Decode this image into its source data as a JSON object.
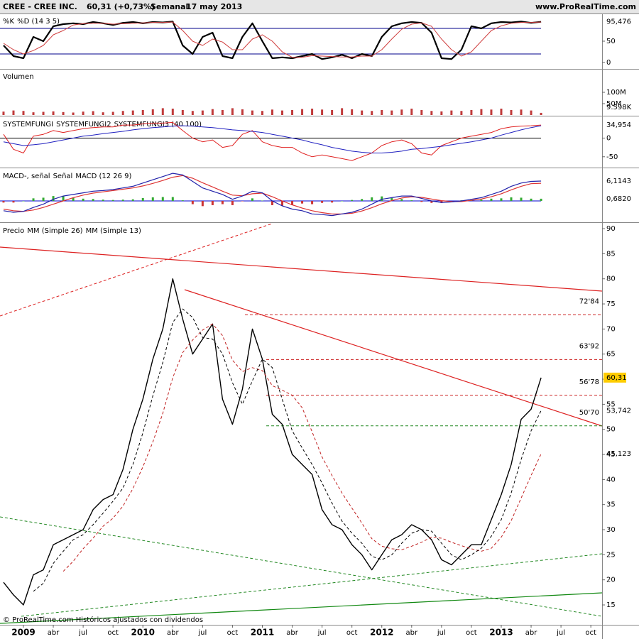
{
  "header": {
    "symbol": "CREE - CREE INC.",
    "quote": "60,31 (+0,73%)",
    "period": "Semanal",
    "date": "17 may 2013",
    "site": "www.ProRealTime.com"
  },
  "footer": "© ProRealTime.com  Históricos ajustados con dividendos",
  "chart_data": [
    {
      "type": "line",
      "xlim": [
        -2.354,
        58.13
      ],
      "ylim": [
        -13.3,
        113.3
      ],
      "yticks": [
        50,
        0
      ],
      "bands": [
        20,
        80
      ],
      "band_color": "#00008b",
      "x": [
        -2,
        -1,
        0,
        1,
        2,
        3,
        4,
        5,
        6,
        7,
        8,
        9,
        10,
        11,
        12,
        13,
        14,
        15,
        16,
        17,
        18,
        19,
        20,
        21,
        22,
        23,
        24,
        25,
        26,
        27,
        28,
        29,
        30,
        31,
        32,
        33,
        34,
        35,
        36,
        37,
        38,
        39,
        40,
        41,
        42,
        43,
        44,
        45,
        46,
        47,
        48,
        49,
        50,
        51,
        52
      ],
      "series": [
        {
          "name": "%K",
          "color": "#000000",
          "width": 2.2,
          "last_label": "95,476",
          "values": [
            40,
            15,
            10,
            60,
            50,
            85,
            90,
            92,
            90,
            95,
            92,
            88,
            93,
            95,
            92,
            95,
            94,
            96,
            40,
            20,
            60,
            70,
            15,
            10,
            60,
            92,
            50,
            10,
            12,
            10,
            15,
            20,
            8,
            12,
            18,
            10,
            20,
            15,
            60,
            85,
            92,
            95,
            93,
            70,
            10,
            8,
            30,
            85,
            80,
            92,
            95,
            94,
            96,
            93,
            95.476
          ]
        },
        {
          "name": "%D (14 3 5)",
          "color": "#d04040",
          "width": 1,
          "values": [
            45,
            30,
            20,
            28,
            40,
            65,
            75,
            88,
            91,
            92,
            92,
            90,
            91,
            92,
            93,
            94,
            94,
            95,
            75,
            50,
            40,
            55,
            48,
            30,
            30,
            55,
            65,
            50,
            25,
            12,
            12,
            16,
            15,
            14,
            13,
            13,
            15,
            15,
            30,
            55,
            78,
            90,
            93,
            85,
            55,
            30,
            15,
            25,
            50,
            75,
            86,
            92,
            94,
            94,
            95
          ]
        }
      ]
    },
    {
      "type": "bar",
      "title": "Volumen",
      "title_color": "#c04040",
      "color": "#c03a3a",
      "current": "9.598K",
      "xlim": [
        -2.354,
        58.13
      ],
      "ylim": [
        0,
        200
      ],
      "yticks": [
        {
          "value": 100,
          "label": "100M"
        },
        {
          "value": 50,
          "label": "50M"
        }
      ],
      "x": [
        -2,
        -1,
        0,
        1,
        2,
        3,
        4,
        5,
        6,
        7,
        8,
        9,
        10,
        11,
        12,
        13,
        14,
        15,
        16,
        17,
        18,
        19,
        20,
        21,
        22,
        23,
        24,
        25,
        26,
        27,
        28,
        29,
        30,
        31,
        32,
        33,
        34,
        35,
        36,
        37,
        38,
        39,
        40,
        41,
        42,
        43,
        44,
        45,
        46,
        47,
        48,
        49,
        50,
        51,
        52
      ],
      "values": [
        15,
        20,
        18,
        12,
        14,
        16,
        13,
        11,
        15,
        17,
        12,
        14,
        18,
        20,
        22,
        25,
        30,
        28,
        22,
        18,
        20,
        26,
        22,
        30,
        25,
        20,
        18,
        24,
        20,
        22,
        26,
        28,
        24,
        22,
        30,
        25,
        20,
        18,
        22,
        20,
        24,
        28,
        22,
        18,
        16,
        20,
        18,
        22,
        26,
        24,
        28,
        22,
        24,
        20,
        9.6
      ]
    },
    {
      "type": "line",
      "title": "SYSTEMFUNGI",
      "title_color": "#000000",
      "xlim": [
        -2.354,
        58.13
      ],
      "ylim": [
        -77,
        56
      ],
      "yticks": [
        0,
        -50
      ],
      "bands": [
        0
      ],
      "band_color": "#000000",
      "x": [
        -2,
        -1,
        0,
        1,
        2,
        3,
        4,
        5,
        6,
        7,
        8,
        9,
        10,
        11,
        12,
        13,
        14,
        15,
        16,
        17,
        18,
        19,
        20,
        21,
        22,
        23,
        24,
        25,
        26,
        27,
        28,
        29,
        30,
        31,
        32,
        33,
        34,
        35,
        36,
        37,
        38,
        39,
        40,
        41,
        42,
        43,
        44,
        45,
        46,
        47,
        48,
        49,
        50,
        51,
        52
      ],
      "series": [
        {
          "name": "SYSTEMFUNGI2",
          "color": "#e02020",
          "width": 1,
          "last_label": "34,954",
          "values": [
            10,
            -30,
            -40,
            5,
            10,
            20,
            15,
            20,
            25,
            28,
            30,
            30,
            35,
            35,
            38,
            40,
            40,
            42,
            20,
            0,
            -10,
            -5,
            -25,
            -20,
            10,
            20,
            -10,
            -20,
            -25,
            -25,
            -40,
            -50,
            -45,
            -50,
            -55,
            -60,
            -50,
            -40,
            -20,
            -10,
            -5,
            -15,
            -40,
            -45,
            -20,
            -10,
            0,
            5,
            10,
            15,
            25,
            30,
            32,
            33,
            34.954
          ]
        },
        {
          "name": "SYSTEMFUNGI3 (40 100)",
          "color": "#2020c0",
          "width": 1,
          "values": [
            -10,
            -15,
            -20,
            -18,
            -15,
            -10,
            -5,
            0,
            5,
            8,
            12,
            15,
            18,
            22,
            25,
            28,
            30,
            32,
            33,
            32,
            30,
            28,
            25,
            22,
            20,
            18,
            15,
            10,
            5,
            0,
            -5,
            -12,
            -18,
            -25,
            -30,
            -35,
            -38,
            -40,
            -40,
            -38,
            -35,
            -30,
            -28,
            -25,
            -22,
            -18,
            -14,
            -10,
            -5,
            0,
            8,
            15,
            22,
            28,
            33
          ]
        }
      ]
    },
    {
      "type": "combo",
      "xlim": [
        -2.354,
        58.13
      ],
      "ylim": [
        -6.33,
        9.83
      ],
      "bands": [
        0
      ],
      "band_color": "#0000cc",
      "x": [
        -2,
        -1,
        0,
        1,
        2,
        3,
        4,
        5,
        6,
        7,
        8,
        9,
        10,
        11,
        12,
        13,
        14,
        15,
        16,
        17,
        18,
        19,
        20,
        21,
        22,
        23,
        24,
        25,
        26,
        27,
        28,
        29,
        30,
        31,
        32,
        33,
        34,
        35,
        36,
        37,
        38,
        39,
        40,
        41,
        42,
        43,
        44,
        45,
        46,
        47,
        48,
        49,
        50,
        51,
        52
      ],
      "series": [
        {
          "name": "MACD-, señal",
          "kind": "bar",
          "color": "#33aa33",
          "neg_color": "#cc3333",
          "last_label": "0,6820",
          "values": [
            -0.5,
            -0.5,
            0,
            0.8,
            1,
            1.5,
            1.5,
            1,
            0.7,
            0.6,
            0.4,
            0.3,
            0.4,
            0.5,
            0.9,
            1.1,
            1.2,
            1.2,
            0.2,
            -1,
            -1.6,
            -1.3,
            -1,
            -1.3,
            -0.1,
            0.8,
            0.1,
            -1.3,
            -1.5,
            -1.3,
            -0.8,
            -1,
            -0.6,
            -0.5,
            0,
            0.3,
            0.6,
            1.1,
            1.4,
            0.9,
            0.6,
            0.2,
            -0.3,
            -0.6,
            -0.6,
            -0.1,
            0.2,
            0.3,
            0.4,
            0.7,
            0.8,
            1.1,
            1,
            0.7,
            0.682
          ]
        },
        {
          "name": "Señal",
          "kind": "line",
          "color": "#dd3333",
          "width": 1.2,
          "values": [
            -2.5,
            -3,
            -3.2,
            -2.8,
            -2,
            -1,
            0,
            1,
            1.8,
            2.4,
            2.8,
            3.2,
            3.6,
            4,
            4.6,
            5.4,
            6.3,
            7.3,
            7.8,
            7,
            5.6,
            4.3,
            3,
            1.8,
            1.6,
            2.2,
            2.4,
            1.3,
            0,
            -1.2,
            -2.2,
            -3,
            -3.6,
            -4,
            -4,
            -3.8,
            -3.1,
            -2.1,
            -0.9,
            0.1,
            0.9,
            1.3,
            1.1,
            0.6,
            0.1,
            -0.2,
            -0.2,
            0.2,
            0.6,
            1.3,
            2.2,
            3.4,
            4.5,
            5.3,
            5.4323
          ]
        },
        {
          "name": "MACD (12 26 9)",
          "kind": "line",
          "color": "#2222aa",
          "width": 1.2,
          "last_label": "6,1143",
          "values": [
            -3,
            -3.5,
            -3.2,
            -2,
            -1,
            0.5,
            1.5,
            2,
            2.5,
            3,
            3.2,
            3.5,
            4,
            4.5,
            5.5,
            6.5,
            7.5,
            8.5,
            8,
            6,
            4,
            3,
            2,
            0.5,
            1.5,
            3,
            2.5,
            0,
            -1.5,
            -2.5,
            -3,
            -4,
            -4.2,
            -4.5,
            -4,
            -3.5,
            -2.5,
            -1,
            0.5,
            1,
            1.5,
            1.5,
            0.8,
            0,
            -0.5,
            -0.3,
            0,
            0.5,
            1,
            2,
            3,
            4.5,
            5.5,
            6,
            6.1143
          ]
        }
      ]
    },
    {
      "type": "line",
      "xlim": [
        -2.354,
        58.13
      ],
      "ylim": [
        11.04,
        91
      ],
      "yticks": [
        90,
        85,
        80,
        75,
        70,
        65,
        60,
        55,
        50,
        45,
        40,
        35,
        30,
        25,
        20,
        15
      ],
      "xticks": [
        {
          "value": 0,
          "label": "2009"
        },
        {
          "value": 3,
          "label": "abr"
        },
        {
          "value": 6,
          "label": "jul"
        },
        {
          "value": 9,
          "label": "oct"
        },
        {
          "value": 12,
          "label": "2010"
        },
        {
          "value": 15,
          "label": "abr"
        },
        {
          "value": 18,
          "label": "jul"
        },
        {
          "value": 21,
          "label": "oct"
        },
        {
          "value": 24,
          "label": "2011"
        },
        {
          "value": 27,
          "label": "abr"
        },
        {
          "value": 30,
          "label": "jul"
        },
        {
          "value": 33,
          "label": "oct"
        },
        {
          "value": 36,
          "label": "2012"
        },
        {
          "value": 39,
          "label": "abr"
        },
        {
          "value": 42,
          "label": "jul"
        },
        {
          "value": 45,
          "label": "oct"
        },
        {
          "value": 48,
          "label": "2013"
        },
        {
          "value": 51,
          "label": "abr"
        },
        {
          "value": 54,
          "label": "jul"
        },
        {
          "value": 57,
          "label": "oct"
        }
      ],
      "levels": [
        {
          "value": 72.84,
          "label": "72'84",
          "color": "#cc2222"
        },
        {
          "value": 63.92,
          "label": "63'92",
          "color": "#cc2222"
        },
        {
          "value": 56.78,
          "label": "56'78",
          "color": "#cc2222"
        },
        {
          "value": 50.7,
          "label": "50'70",
          "color": "#228822"
        }
      ],
      "x": [
        -2,
        -1,
        0,
        1,
        2,
        3,
        4,
        5,
        6,
        7,
        8,
        9,
        10,
        11,
        12,
        13,
        14,
        15,
        16,
        17,
        18,
        19,
        20,
        21,
        22,
        23,
        24,
        25,
        26,
        27,
        28,
        29,
        30,
        31,
        32,
        33,
        34,
        35,
        36,
        37,
        38,
        39,
        40,
        41,
        42,
        43,
        44,
        45,
        46,
        47,
        48,
        49,
        50,
        51,
        52
      ],
      "series": [
        {
          "name": "Precio",
          "color": "#000000",
          "width": 1.4,
          "last_label": "60,31",
          "label_bg": "#ffcc00",
          "values": [
            19.5,
            17,
            15,
            21,
            22,
            27,
            28,
            29,
            30,
            34,
            36,
            37,
            42,
            50,
            56,
            64,
            70,
            80,
            72,
            65,
            68,
            71,
            56,
            51,
            58,
            70,
            64,
            53,
            51,
            45,
            43,
            41,
            34,
            31,
            30,
            27,
            25,
            22,
            25,
            28,
            29,
            31,
            30,
            28,
            24,
            23,
            25,
            27,
            27,
            32,
            37,
            43,
            52,
            54,
            60.31
          ]
        },
        {
          "name": "MM (Simple 26)",
          "color": "#c02020",
          "width": 1,
          "dash": true,
          "last_label": "45,123",
          "values": [
            null,
            null,
            null,
            null,
            null,
            null,
            21.7,
            23.7,
            26.2,
            28.3,
            30.7,
            32.3,
            34.7,
            38.2,
            42.5,
            47.5,
            53.2,
            60.3,
            65.3,
            67.8,
            69.8,
            71,
            68.7,
            63.8,
            61.5,
            62.3,
            61.7,
            58.7,
            57.8,
            56.8,
            54.3,
            49.5,
            44.5,
            40.8,
            37.3,
            34.3,
            31.3,
            28.2,
            26.7,
            26.2,
            26,
            26.7,
            27.5,
            28.5,
            28.3,
            27.5,
            26.8,
            26.2,
            25.7,
            26.3,
            28.5,
            31.8,
            36.3,
            40.8,
            45.123
          ]
        },
        {
          "name": "MM (Simple 13)",
          "color": "#000000",
          "width": 1,
          "dash": true,
          "last_label": "53,742",
          "values": [
            null,
            null,
            null,
            17.7,
            19.3,
            23.3,
            25.7,
            28,
            29,
            31,
            33.3,
            35.7,
            38.3,
            43,
            49.3,
            56.7,
            63.3,
            71.3,
            74,
            72.3,
            68.3,
            68,
            65,
            59.3,
            55,
            59.7,
            64,
            62.3,
            56,
            49.7,
            46.3,
            43,
            39.3,
            35.3,
            31.7,
            29.3,
            27.3,
            24.7,
            24,
            25,
            27.3,
            29.3,
            30,
            29.7,
            27.3,
            25,
            24,
            25,
            26.3,
            28.7,
            32,
            37.3,
            44,
            49.7,
            53.742
          ]
        }
      ]
    }
  ]
}
